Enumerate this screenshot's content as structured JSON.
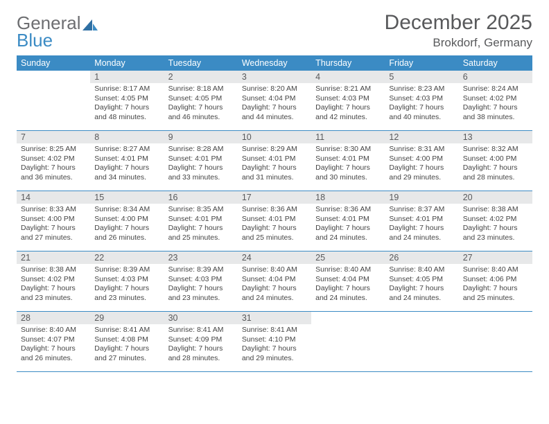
{
  "logo": {
    "line1": "General",
    "line2": "Blue"
  },
  "title": "December 2025",
  "location": "Brokdorf, Germany",
  "header_bg": "#3b8bc4",
  "header_fg": "#ffffff",
  "daynum_bg": "#e7e8e9",
  "rule_color": "#3b8bc4",
  "weekdays": [
    "Sunday",
    "Monday",
    "Tuesday",
    "Wednesday",
    "Thursday",
    "Friday",
    "Saturday"
  ],
  "weeks": [
    [
      null,
      {
        "n": "1",
        "sr": "8:17 AM",
        "ss": "4:05 PM",
        "dl": "7 hours and 48 minutes."
      },
      {
        "n": "2",
        "sr": "8:18 AM",
        "ss": "4:05 PM",
        "dl": "7 hours and 46 minutes."
      },
      {
        "n": "3",
        "sr": "8:20 AM",
        "ss": "4:04 PM",
        "dl": "7 hours and 44 minutes."
      },
      {
        "n": "4",
        "sr": "8:21 AM",
        "ss": "4:03 PM",
        "dl": "7 hours and 42 minutes."
      },
      {
        "n": "5",
        "sr": "8:23 AM",
        "ss": "4:03 PM",
        "dl": "7 hours and 40 minutes."
      },
      {
        "n": "6",
        "sr": "8:24 AM",
        "ss": "4:02 PM",
        "dl": "7 hours and 38 minutes."
      }
    ],
    [
      {
        "n": "7",
        "sr": "8:25 AM",
        "ss": "4:02 PM",
        "dl": "7 hours and 36 minutes."
      },
      {
        "n": "8",
        "sr": "8:27 AM",
        "ss": "4:01 PM",
        "dl": "7 hours and 34 minutes."
      },
      {
        "n": "9",
        "sr": "8:28 AM",
        "ss": "4:01 PM",
        "dl": "7 hours and 33 minutes."
      },
      {
        "n": "10",
        "sr": "8:29 AM",
        "ss": "4:01 PM",
        "dl": "7 hours and 31 minutes."
      },
      {
        "n": "11",
        "sr": "8:30 AM",
        "ss": "4:01 PM",
        "dl": "7 hours and 30 minutes."
      },
      {
        "n": "12",
        "sr": "8:31 AM",
        "ss": "4:00 PM",
        "dl": "7 hours and 29 minutes."
      },
      {
        "n": "13",
        "sr": "8:32 AM",
        "ss": "4:00 PM",
        "dl": "7 hours and 28 minutes."
      }
    ],
    [
      {
        "n": "14",
        "sr": "8:33 AM",
        "ss": "4:00 PM",
        "dl": "7 hours and 27 minutes."
      },
      {
        "n": "15",
        "sr": "8:34 AM",
        "ss": "4:00 PM",
        "dl": "7 hours and 26 minutes."
      },
      {
        "n": "16",
        "sr": "8:35 AM",
        "ss": "4:01 PM",
        "dl": "7 hours and 25 minutes."
      },
      {
        "n": "17",
        "sr": "8:36 AM",
        "ss": "4:01 PM",
        "dl": "7 hours and 25 minutes."
      },
      {
        "n": "18",
        "sr": "8:36 AM",
        "ss": "4:01 PM",
        "dl": "7 hours and 24 minutes."
      },
      {
        "n": "19",
        "sr": "8:37 AM",
        "ss": "4:01 PM",
        "dl": "7 hours and 24 minutes."
      },
      {
        "n": "20",
        "sr": "8:38 AM",
        "ss": "4:02 PM",
        "dl": "7 hours and 23 minutes."
      }
    ],
    [
      {
        "n": "21",
        "sr": "8:38 AM",
        "ss": "4:02 PM",
        "dl": "7 hours and 23 minutes."
      },
      {
        "n": "22",
        "sr": "8:39 AM",
        "ss": "4:03 PM",
        "dl": "7 hours and 23 minutes."
      },
      {
        "n": "23",
        "sr": "8:39 AM",
        "ss": "4:03 PM",
        "dl": "7 hours and 23 minutes."
      },
      {
        "n": "24",
        "sr": "8:40 AM",
        "ss": "4:04 PM",
        "dl": "7 hours and 24 minutes."
      },
      {
        "n": "25",
        "sr": "8:40 AM",
        "ss": "4:04 PM",
        "dl": "7 hours and 24 minutes."
      },
      {
        "n": "26",
        "sr": "8:40 AM",
        "ss": "4:05 PM",
        "dl": "7 hours and 24 minutes."
      },
      {
        "n": "27",
        "sr": "8:40 AM",
        "ss": "4:06 PM",
        "dl": "7 hours and 25 minutes."
      }
    ],
    [
      {
        "n": "28",
        "sr": "8:40 AM",
        "ss": "4:07 PM",
        "dl": "7 hours and 26 minutes."
      },
      {
        "n": "29",
        "sr": "8:41 AM",
        "ss": "4:08 PM",
        "dl": "7 hours and 27 minutes."
      },
      {
        "n": "30",
        "sr": "8:41 AM",
        "ss": "4:09 PM",
        "dl": "7 hours and 28 minutes."
      },
      {
        "n": "31",
        "sr": "8:41 AM",
        "ss": "4:10 PM",
        "dl": "7 hours and 29 minutes."
      },
      null,
      null,
      null
    ]
  ],
  "labels": {
    "sunrise": "Sunrise:",
    "sunset": "Sunset:",
    "daylight": "Daylight:"
  }
}
